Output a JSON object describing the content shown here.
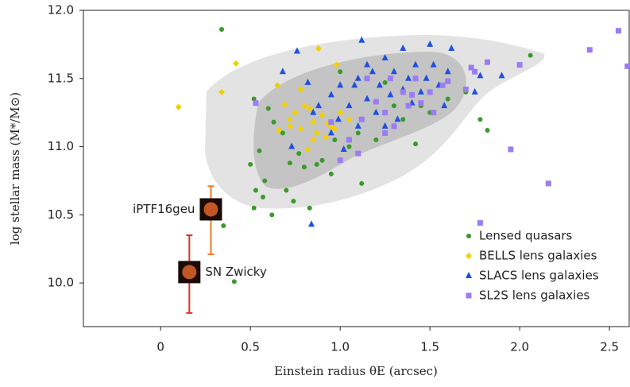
{
  "chart_data": {
    "type": "scatter",
    "x_label": "Einstein radius θE (arcsec)",
    "y_label": "log stellar mass (M*/M⊙)",
    "xlim": [
      -0.43,
      2.61
    ],
    "ylim": [
      9.68,
      12.0
    ],
    "xticks": [
      0,
      0.5,
      {
        "value": 1.0,
        "label": "1.0"
      },
      1.5,
      {
        "value": 2.0,
        "label": "2.0"
      },
      2.5
    ],
    "yticks": [
      {
        "value": 10.0,
        "label": "10.0"
      },
      10.5,
      {
        "value": 11.0,
        "label": "11.0"
      },
      11.5,
      {
        "value": 12.0,
        "label": "12.0"
      }
    ],
    "legend": "lower right",
    "series": [
      {
        "name": "Lensed quasars",
        "color": "#3a9a2a",
        "marker": "circle",
        "x": [
          0.34,
          0.52,
          0.6,
          0.63,
          0.55,
          0.5,
          0.58,
          0.53,
          0.57,
          0.7,
          0.72,
          0.8,
          0.87,
          0.9,
          0.95,
          0.97,
          1.05,
          1.1,
          1.2,
          1.3,
          1.35,
          1.45,
          1.5,
          1.6,
          1.7,
          1.82,
          2.06,
          1.78,
          1.42,
          0.52,
          0.62,
          0.41,
          0.35,
          0.83,
          1.12,
          0.77,
          0.68,
          1.0,
          1.25,
          0.74
        ],
        "values": [
          11.86,
          11.35,
          11.28,
          11.18,
          10.97,
          10.87,
          10.75,
          10.68,
          10.63,
          10.68,
          10.88,
          10.85,
          10.87,
          10.9,
          10.8,
          11.05,
          11.0,
          11.1,
          11.05,
          11.3,
          11.2,
          11.3,
          11.25,
          11.35,
          11.4,
          11.12,
          11.67,
          11.2,
          11.02,
          10.55,
          10.5,
          10.01,
          10.42,
          10.55,
          10.73,
          10.95,
          11.1,
          11.55,
          11.47,
          10.6
        ]
      },
      {
        "name": "BELLS lens galaxies",
        "color": "#f2d000",
        "marker": "diamond",
        "x": [
          0.1,
          0.34,
          0.42,
          0.65,
          0.69,
          0.72,
          0.72,
          0.75,
          0.78,
          0.8,
          0.83,
          0.85,
          0.87,
          0.88,
          0.9,
          0.93,
          0.95,
          0.97,
          1.0,
          1.05,
          0.78,
          0.92,
          0.66,
          0.98,
          0.85,
          0.82
        ],
        "values": [
          11.29,
          11.4,
          11.61,
          11.45,
          11.31,
          11.2,
          11.15,
          11.25,
          11.42,
          11.3,
          11.28,
          11.18,
          11.1,
          11.72,
          11.23,
          11.17,
          11.15,
          11.13,
          11.25,
          11.2,
          11.13,
          11.07,
          11.12,
          11.6,
          11.05,
          10.98
        ]
      },
      {
        "name": "SLACS lens galaxies",
        "color": "#1f50e0",
        "marker": "triangle",
        "x": [
          0.68,
          0.76,
          0.82,
          0.85,
          0.88,
          0.95,
          1.0,
          1.05,
          1.08,
          1.1,
          1.12,
          1.15,
          1.18,
          1.2,
          1.22,
          1.25,
          1.28,
          1.3,
          1.32,
          1.35,
          1.38,
          1.4,
          1.42,
          1.45,
          1.48,
          1.52,
          1.55,
          1.58,
          1.6,
          1.75,
          1.78,
          1.5,
          1.62,
          0.95,
          1.02,
          1.1,
          1.25,
          0.84,
          1.9,
          0.73,
          1.15,
          1.35,
          0.99
        ],
        "values": [
          11.55,
          11.7,
          11.47,
          11.25,
          11.3,
          11.38,
          11.45,
          11.3,
          11.45,
          11.5,
          11.78,
          11.35,
          11.55,
          11.25,
          11.45,
          11.65,
          11.38,
          11.55,
          11.2,
          11.42,
          11.5,
          11.32,
          11.6,
          11.4,
          11.5,
          11.6,
          11.45,
          11.3,
          11.55,
          11.4,
          11.52,
          11.75,
          11.72,
          11.1,
          10.98,
          11.15,
          11.15,
          10.43,
          11.52,
          11.0,
          11.6,
          11.72,
          11.2
        ]
      },
      {
        "name": "SL2S lens galaxies",
        "color": "#9b7cf2",
        "marker": "square",
        "x": [
          0.53,
          0.95,
          1.0,
          1.05,
          1.12,
          1.15,
          1.2,
          1.25,
          1.28,
          1.3,
          1.35,
          1.4,
          1.42,
          1.45,
          1.5,
          1.52,
          1.57,
          1.6,
          1.7,
          1.75,
          1.82,
          1.78,
          1.95,
          2.0,
          2.16,
          2.39,
          2.55,
          2.6,
          1.73,
          1.1,
          1.25,
          1.38
        ],
        "values": [
          11.32,
          11.18,
          10.9,
          11.05,
          11.2,
          11.5,
          11.33,
          11.25,
          11.5,
          11.15,
          11.4,
          11.38,
          11.5,
          11.32,
          11.4,
          11.25,
          11.45,
          11.48,
          11.42,
          11.55,
          11.62,
          10.44,
          10.98,
          11.6,
          10.73,
          11.71,
          11.85,
          11.59,
          11.58,
          10.95,
          11.1,
          11.3
        ]
      }
    ],
    "annotations": [
      {
        "label": "iPTF16geu",
        "color": "#f07a28",
        "x": 0.28,
        "y": 10.54,
        "ylow": 10.21,
        "yhigh": 10.71
      },
      {
        "label": "SN Zwicky",
        "color": "#dd3322",
        "x": 0.16,
        "y": 10.08,
        "ylow": 9.78,
        "yhigh": 10.35
      }
    ]
  }
}
